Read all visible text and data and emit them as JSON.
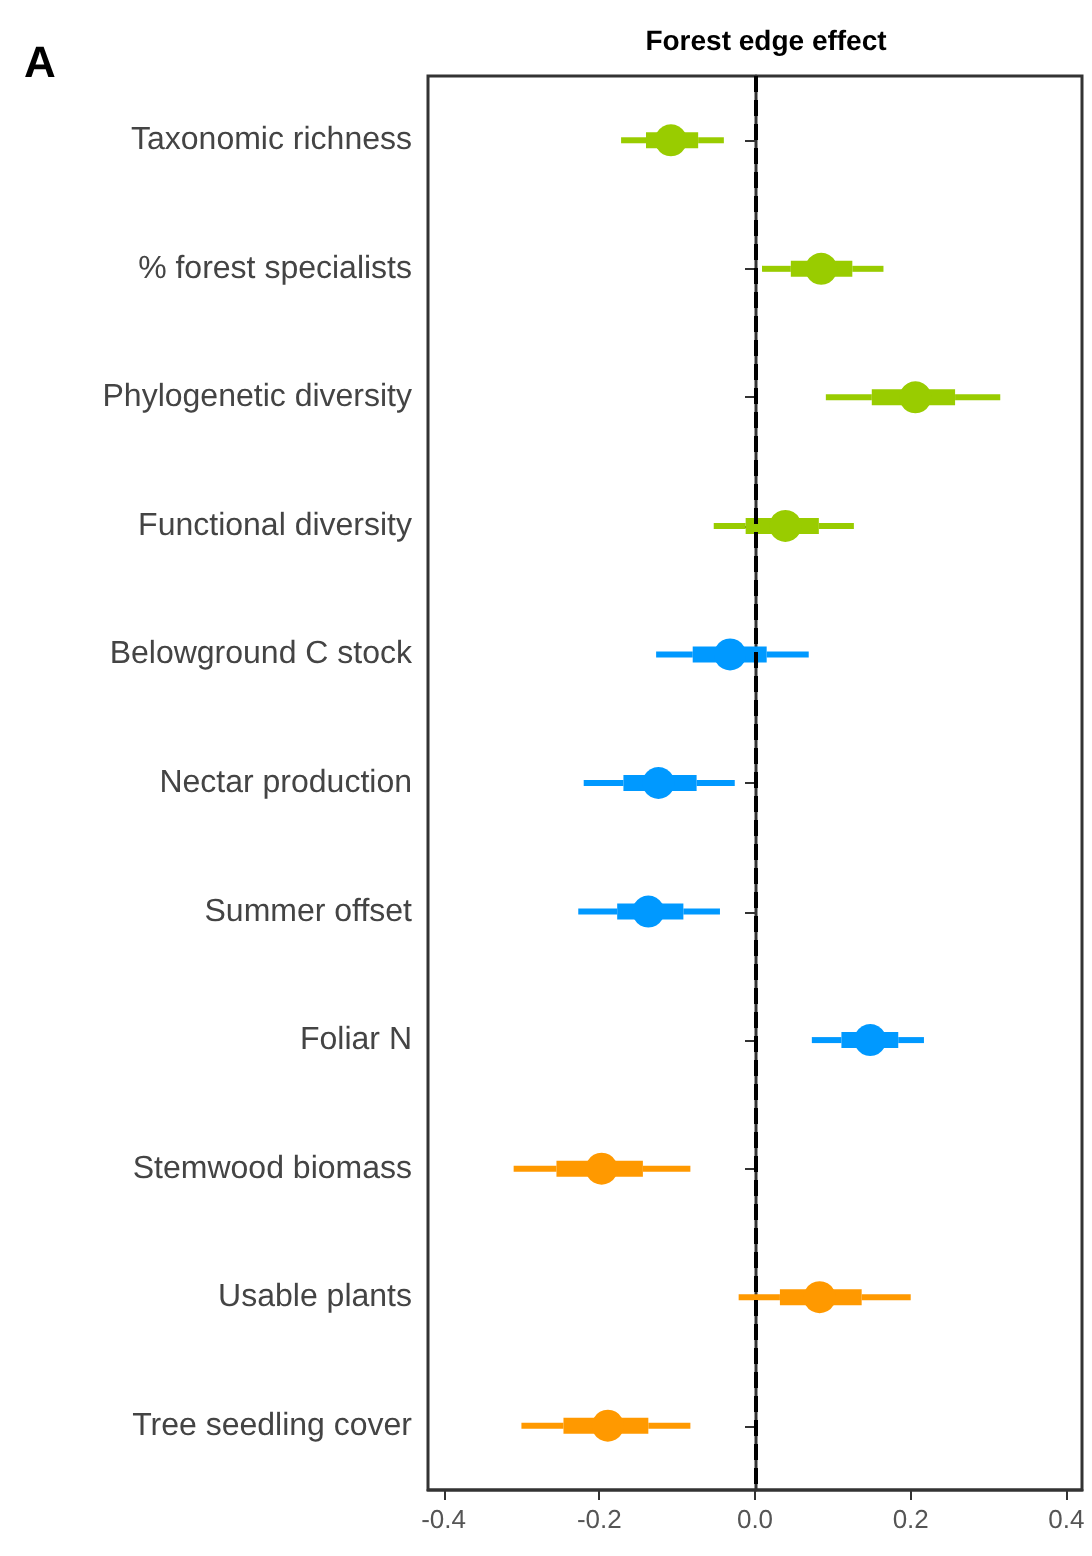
{
  "chart_data": {
    "type": "box",
    "orientation": "horizontal",
    "title": "Forest edge effect",
    "annotations": [
      "A"
    ],
    "categories": [
      "Taxonomic richness",
      "% forest specialists",
      "Phylogenetic diversity",
      "Functional diversity",
      "Belowground C stock",
      "Nectar production",
      "Summer offset",
      "Foliar N",
      "Stemwood biomass",
      "Usable plants",
      "Tree seedling cover"
    ],
    "boxes": [
      {
        "low": -0.172,
        "q1": -0.14,
        "median": -0.108,
        "q3": -0.073,
        "high": -0.04
      },
      {
        "low": 0.009,
        "q1": 0.046,
        "median": 0.085,
        "q3": 0.125,
        "high": 0.165
      },
      {
        "low": 0.091,
        "q1": 0.15,
        "median": 0.206,
        "q3": 0.257,
        "high": 0.315
      },
      {
        "low": -0.053,
        "q1": -0.012,
        "median": 0.039,
        "q3": 0.082,
        "high": 0.127
      },
      {
        "low": -0.127,
        "q1": -0.08,
        "median": -0.032,
        "q3": 0.015,
        "high": 0.069
      },
      {
        "low": -0.22,
        "q1": -0.169,
        "median": -0.124,
        "q3": -0.075,
        "high": -0.026
      },
      {
        "low": -0.227,
        "q1": -0.177,
        "median": -0.137,
        "q3": -0.092,
        "high": -0.045
      },
      {
        "low": 0.073,
        "q1": 0.111,
        "median": 0.148,
        "q3": 0.184,
        "high": 0.217
      },
      {
        "low": -0.31,
        "q1": -0.255,
        "median": -0.197,
        "q3": -0.144,
        "high": -0.083
      },
      {
        "low": -0.021,
        "q1": 0.032,
        "median": 0.083,
        "q3": 0.137,
        "high": 0.2
      },
      {
        "low": -0.3,
        "q1": -0.246,
        "median": -0.189,
        "q3": -0.137,
        "high": -0.083
      }
    ],
    "colors": [
      "#99cc00",
      "#99cc00",
      "#99cc00",
      "#99cc00",
      "#0099ff",
      "#0099ff",
      "#0099ff",
      "#0099ff",
      "#ff9900",
      "#ff9900",
      "#ff9900"
    ],
    "xlim": [
      -0.42,
      0.42
    ],
    "xticks": [
      -0.4,
      -0.2,
      {
        "value": 0,
        "label": "0.0"
      },
      0.2,
      0.4
    ],
    "ref_lines": [
      {
        "axis": "x",
        "value": 0,
        "color": "#000000",
        "line_style": "dashed"
      }
    ]
  }
}
